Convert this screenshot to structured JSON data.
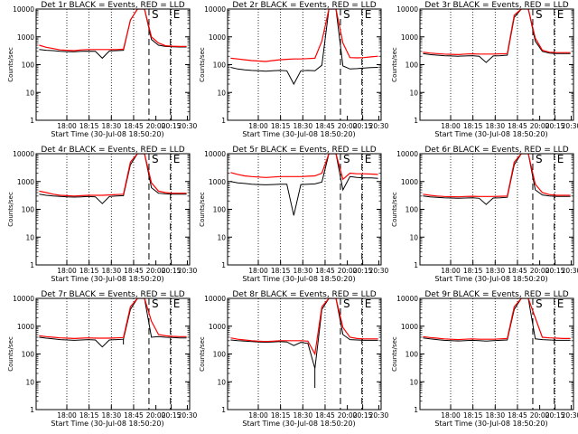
{
  "chart_data": {
    "type": "line",
    "title_template": "{det} BLACK = Events, RED = LLD",
    "xlabel": "Start Time (30-Jul-08 18:50:20)",
    "ylabel": "Counts/sec",
    "x_ticks": [
      "18:00",
      "18:15",
      "18:30",
      "18:45",
      "20:00",
      "20:15",
      "20:30"
    ],
    "y_ticks": [
      "1",
      "10",
      "100",
      "1000",
      "10000"
    ],
    "ylim": [
      1,
      10000
    ],
    "y_scale": "log",
    "flag_labels": [
      "S",
      "E"
    ],
    "series_colors": {
      "events": "#000000",
      "lld": "#ff0000"
    },
    "panels": [
      {
        "det": "Det 1r",
        "events": [
          350,
          330,
          320,
          300,
          295,
          290,
          300,
          305,
          300,
          170,
          310,
          320,
          330,
          4000,
          10000,
          10000,
          800,
          500,
          450,
          440,
          430,
          430
        ],
        "lld": [
          500,
          420,
          380,
          340,
          330,
          320,
          340,
          350,
          350,
          350,
          350,
          350,
          360,
          4000,
          10000,
          10000,
          1000,
          600,
          480,
          460,
          450,
          450
        ]
      },
      {
        "det": "Det 2r",
        "events": [
          80,
          70,
          65,
          62,
          60,
          58,
          60,
          62,
          60,
          20,
          60,
          62,
          60,
          95,
          10000,
          10000,
          90,
          70,
          72,
          75,
          78,
          80
        ],
        "lld": [
          170,
          160,
          150,
          140,
          135,
          130,
          140,
          150,
          155,
          160,
          160,
          165,
          170,
          700,
          10000,
          10000,
          600,
          180,
          175,
          180,
          190,
          200
        ]
      },
      {
        "det": "Det 3r",
        "events": [
          250,
          230,
          220,
          210,
          205,
          200,
          205,
          210,
          200,
          120,
          205,
          210,
          220,
          5000,
          10000,
          10000,
          700,
          300,
          260,
          250,
          250,
          250
        ],
        "lld": [
          280,
          260,
          250,
          240,
          235,
          230,
          240,
          245,
          240,
          240,
          240,
          245,
          250,
          6000,
          10000,
          10000,
          900,
          330,
          280,
          270,
          270,
          270
        ]
      },
      {
        "det": "Det 4r",
        "events": [
          350,
          320,
          300,
          290,
          280,
          275,
          280,
          290,
          280,
          160,
          290,
          300,
          310,
          4000,
          10000,
          10000,
          600,
          380,
          360,
          350,
          350,
          350
        ],
        "lld": [
          450,
          400,
          350,
          320,
          310,
          300,
          310,
          320,
          320,
          320,
          330,
          340,
          350,
          5000,
          10000,
          10000,
          900,
          450,
          400,
          380,
          380,
          380
        ]
      },
      {
        "det": "Det 5r",
        "events": [
          1000,
          900,
          850,
          800,
          780,
          760,
          780,
          800,
          800,
          60,
          780,
          800,
          820,
          950,
          10000,
          10000,
          500,
          1500,
          1400,
          1350,
          1350,
          1300
        ],
        "lld": [
          2100,
          1800,
          1600,
          1500,
          1450,
          1400,
          1450,
          1500,
          1500,
          1500,
          1500,
          1550,
          1600,
          2000,
          10000,
          10000,
          1200,
          2000,
          1900,
          1900,
          1850,
          1800
        ]
      },
      {
        "det": "Det 6r",
        "events": [
          300,
          280,
          270,
          260,
          255,
          250,
          255,
          260,
          250,
          150,
          255,
          260,
          270,
          4000,
          10000,
          10000,
          500,
          330,
          300,
          290,
          290,
          290
        ],
        "lld": [
          350,
          320,
          300,
          290,
          285,
          280,
          290,
          295,
          290,
          290,
          290,
          295,
          300,
          5000,
          10000,
          10000,
          800,
          400,
          340,
          320,
          320,
          320
        ]
      },
      {
        "det": "Det 7r",
        "events": [
          400,
          370,
          350,
          330,
          320,
          310,
          320,
          330,
          320,
          180,
          320,
          330,
          340,
          4000,
          10000,
          10000,
          400,
          420,
          400,
          390,
          380,
          380
        ],
        "lld": [
          450,
          420,
          400,
          380,
          370,
          360,
          370,
          380,
          370,
          370,
          370,
          380,
          390,
          5000,
          10000,
          10000,
          1500,
          500,
          450,
          430,
          420,
          420
        ],
        "extra_dip": [
          12,
          220
        ]
      },
      {
        "det": "Det 8r",
        "events": [
          320,
          300,
          290,
          280,
          270,
          265,
          270,
          280,
          270,
          200,
          260,
          240,
          30,
          4000,
          10000,
          10000,
          500,
          330,
          320,
          310,
          310,
          310
        ],
        "lld": [
          380,
          340,
          320,
          300,
          290,
          280,
          290,
          300,
          300,
          300,
          300,
          290,
          100,
          5000,
          10000,
          10000,
          900,
          400,
          360,
          350,
          350,
          350
        ],
        "extra_dip": [
          12,
          6
        ]
      },
      {
        "det": "Det 9r",
        "events": [
          380,
          350,
          330,
          310,
          300,
          295,
          300,
          310,
          300,
          290,
          300,
          310,
          320,
          4000,
          10000,
          10000,
          350,
          330,
          320,
          310,
          310,
          310
        ],
        "lld": [
          420,
          390,
          370,
          350,
          340,
          330,
          340,
          350,
          340,
          340,
          340,
          350,
          360,
          5000,
          10000,
          10000,
          2000,
          400,
          380,
          370,
          360,
          360
        ]
      }
    ]
  }
}
